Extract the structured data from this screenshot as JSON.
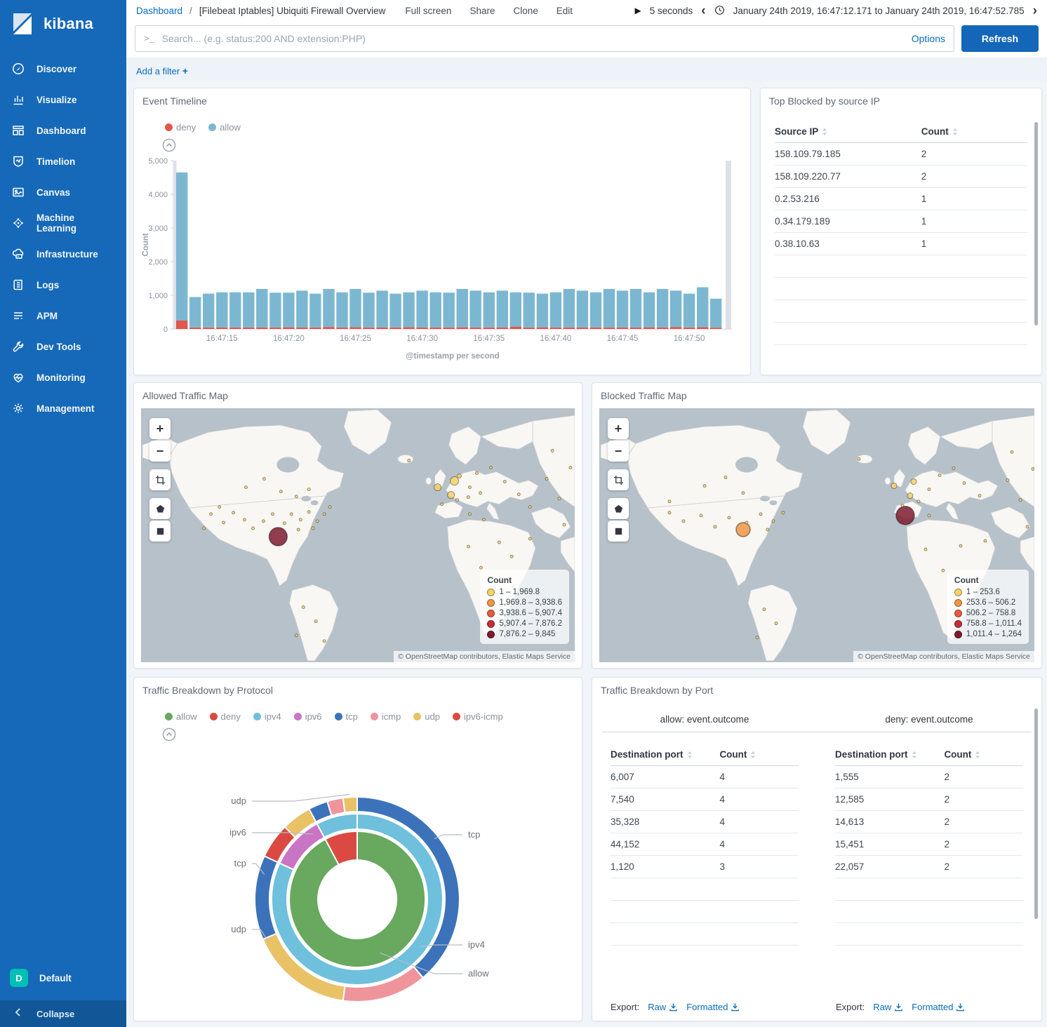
{
  "app": {
    "wordmark": "kibana"
  },
  "colors": {
    "sidebar": "#1569b8",
    "accent": "#1467b8",
    "link": "#0a6cbb",
    "space_badge": "#00bfb3"
  },
  "sidebar": {
    "items": [
      {
        "label": "Discover",
        "icon": "discover"
      },
      {
        "label": "Visualize",
        "icon": "visualize"
      },
      {
        "label": "Dashboard",
        "icon": "dashboard"
      },
      {
        "label": "Timelion",
        "icon": "timelion"
      },
      {
        "label": "Canvas",
        "icon": "canvas"
      },
      {
        "label": "Machine Learning",
        "icon": "machine-learning"
      },
      {
        "label": "Infrastructure",
        "icon": "infrastructure"
      },
      {
        "label": "Logs",
        "icon": "logs"
      },
      {
        "label": "APM",
        "icon": "apm"
      },
      {
        "label": "Dev Tools",
        "icon": "dev-tools"
      },
      {
        "label": "Monitoring",
        "icon": "monitoring"
      },
      {
        "label": "Management",
        "icon": "management"
      }
    ],
    "space": {
      "badge": "D",
      "label": "Default"
    },
    "collapse_label": "Collapse"
  },
  "topbar": {
    "breadcrumb": {
      "root": "Dashboard",
      "separator": "/",
      "current": "[Filebeat Iptables] Ubiquiti Firewall Overview"
    },
    "menu": [
      "Full screen",
      "Share",
      "Clone",
      "Edit"
    ],
    "refresh_interval": "5 seconds",
    "time_range": "January 24th 2019, 16:47:12.171 to January 24th 2019, 16:47:52.785"
  },
  "search": {
    "placeholder": "Search... (e.g. status:200 AND extension:PHP)",
    "options_label": "Options",
    "refresh_label": "Refresh"
  },
  "filter_bar": {
    "label": "Add a filter",
    "plus": "+"
  },
  "chart_data": [
    {
      "panel": "event-timeline",
      "type": "bar",
      "stacked": true,
      "title": "Event Timeline",
      "ylabel": "Count",
      "xlabel": "@timestamp per second",
      "ylim": [
        0,
        5000
      ],
      "y_ticks": [
        {
          "v": 0,
          "label": "0"
        },
        {
          "v": 1000,
          "label": "1,000"
        },
        {
          "v": 2000,
          "label": "2,000"
        },
        {
          "v": 3000,
          "label": "3,000"
        },
        {
          "v": 4000,
          "label": "4,000"
        },
        {
          "v": 5000,
          "label": "5,000"
        }
      ],
      "x": [
        "16:47:12",
        "16:47:13",
        "16:47:14",
        "16:47:15",
        "16:47:16",
        "16:47:17",
        "16:47:18",
        "16:47:19",
        "16:47:20",
        "16:47:21",
        "16:47:22",
        "16:47:23",
        "16:47:24",
        "16:47:25",
        "16:47:26",
        "16:47:27",
        "16:47:28",
        "16:47:29",
        "16:47:30",
        "16:47:31",
        "16:47:32",
        "16:47:33",
        "16:47:34",
        "16:47:35",
        "16:47:36",
        "16:47:37",
        "16:47:38",
        "16:47:39",
        "16:47:40",
        "16:47:41",
        "16:47:42",
        "16:47:43",
        "16:47:44",
        "16:47:45",
        "16:47:46",
        "16:47:47",
        "16:47:48",
        "16:47:49",
        "16:47:50",
        "16:47:51",
        "16:47:52"
      ],
      "x_tick_indices": [
        3,
        8,
        13,
        18,
        23,
        28,
        33,
        38
      ],
      "series": [
        {
          "name": "deny",
          "color": "#e2574e",
          "values": [
            250,
            45,
            45,
            45,
            45,
            45,
            45,
            45,
            50,
            45,
            45,
            60,
            45,
            55,
            45,
            45,
            45,
            55,
            45,
            45,
            45,
            50,
            45,
            45,
            45,
            70,
            45,
            50,
            45,
            45,
            45,
            45,
            45,
            45,
            45,
            50,
            45,
            60,
            45,
            55,
            40
          ]
        },
        {
          "name": "allow",
          "color": "#7cb7d2",
          "values": [
            4400,
            905,
            1005,
            1045,
            1045,
            1045,
            1145,
            1035,
            1030,
            1095,
            1005,
            1130,
            1045,
            1135,
            1035,
            1095,
            1005,
            1035,
            1095,
            1045,
            1035,
            1140,
            1095,
            1045,
            1095,
            1020,
            1035,
            1000,
            1045,
            1145,
            1095,
            1045,
            1145,
            1095,
            1145,
            1040,
            1145,
            1080,
            1005,
            1185,
            860
          ]
        }
      ]
    },
    {
      "panel": "top-blocked",
      "type": "table",
      "title": "Top Blocked by source IP",
      "columns": [
        "Source IP",
        "Count"
      ],
      "rows": [
        [
          "158.109.79.185",
          "2"
        ],
        [
          "158.109.220.77",
          "2"
        ],
        [
          "0.2.53.216",
          "1"
        ],
        [
          "0.34.179.189",
          "1"
        ],
        [
          "0.38.10.63",
          "1"
        ]
      ],
      "empty_rows": 4
    },
    {
      "panel": "allowed-map",
      "type": "map",
      "title": "Allowed Traffic Map",
      "legend_title": "Count",
      "legend": [
        {
          "label": "1 – 1,969.8",
          "color": "#f5d168"
        },
        {
          "label": "1,969.8 – 3,938.6",
          "color": "#ef9646"
        },
        {
          "label": "3,938.6 – 5,907.4",
          "color": "#e55d3e"
        },
        {
          "label": "5,907.4 – 7,876.2",
          "color": "#c32f35"
        },
        {
          "label": "7,876.2 – 9,845",
          "color": "#7f1c30"
        }
      ],
      "attribution": "© OpenStreetMap contributors, Elastic Maps Service",
      "points": [
        [
          196,
          182,
          13,
          4
        ],
        [
          424,
          112,
          5,
          0
        ],
        [
          448,
          103,
          6,
          0
        ],
        [
          443,
          123,
          5,
          0
        ],
        [
          100,
          150,
          2,
          0
        ],
        [
          118,
          162,
          2,
          0
        ],
        [
          132,
          148,
          2,
          0
        ],
        [
          148,
          158,
          2,
          0
        ],
        [
          160,
          170,
          2,
          0
        ],
        [
          175,
          160,
          2,
          0
        ],
        [
          188,
          150,
          2,
          0
        ],
        [
          205,
          163,
          2,
          0
        ],
        [
          215,
          150,
          2,
          0
        ],
        [
          228,
          158,
          2,
          0
        ],
        [
          240,
          147,
          2,
          0
        ],
        [
          252,
          160,
          2,
          0
        ],
        [
          262,
          150,
          2,
          0
        ],
        [
          270,
          140,
          2,
          0
        ],
        [
          246,
          170,
          2,
          0
        ],
        [
          225,
          172,
          2,
          0
        ],
        [
          112,
          140,
          2,
          0
        ],
        [
          90,
          170,
          2,
          0
        ],
        [
          150,
          112,
          2,
          0
        ],
        [
          176,
          100,
          2,
          0
        ],
        [
          200,
          118,
          2,
          0
        ],
        [
          222,
          125,
          2,
          0
        ],
        [
          240,
          115,
          2,
          0
        ],
        [
          455,
          96,
          3,
          0
        ],
        [
          470,
          112,
          2,
          0
        ],
        [
          480,
          92,
          2,
          0
        ],
        [
          500,
          84,
          2,
          0
        ],
        [
          430,
          136,
          2,
          0
        ],
        [
          452,
          130,
          2,
          0
        ],
        [
          468,
          126,
          2,
          0
        ],
        [
          485,
          120,
          2,
          0
        ],
        [
          520,
          104,
          2,
          0
        ],
        [
          540,
          122,
          2,
          0
        ],
        [
          556,
          140,
          2,
          0
        ],
        [
          470,
          150,
          2,
          0
        ],
        [
          490,
          158,
          2,
          0
        ],
        [
          468,
          196,
          2,
          0
        ],
        [
          486,
          226,
          2,
          0
        ],
        [
          512,
          190,
          2,
          0
        ],
        [
          530,
          210,
          2,
          0
        ],
        [
          556,
          185,
          2,
          0
        ],
        [
          580,
          100,
          2,
          0
        ],
        [
          598,
          128,
          2,
          0
        ],
        [
          614,
          84,
          2,
          0
        ],
        [
          605,
          165,
          2,
          0
        ],
        [
          588,
          60,
          2,
          0
        ],
        [
          232,
          282,
          2,
          0
        ],
        [
          250,
          302,
          2,
          0
        ],
        [
          222,
          322,
          2,
          0
        ],
        [
          262,
          330,
          2,
          0
        ],
        [
          383,
          74,
          2,
          0
        ]
      ]
    },
    {
      "panel": "blocked-map",
      "type": "map",
      "title": "Blocked Traffic Map",
      "legend_title": "Count",
      "legend": [
        {
          "label": "1 – 253.6",
          "color": "#f5d168"
        },
        {
          "label": "253.6 – 506.2",
          "color": "#ef9646"
        },
        {
          "label": "506.2 – 758.8",
          "color": "#e55d3e"
        },
        {
          "label": "758.8 – 1,011.4",
          "color": "#c32f35"
        },
        {
          "label": "1,011.4 – 1,264",
          "color": "#7f1c30"
        }
      ],
      "attribution": "© OpenStreetMap contributors, Elastic Maps Service",
      "points": [
        [
          205,
          172,
          10,
          1
        ],
        [
          436,
          152,
          13,
          4
        ],
        [
          100,
          148,
          2,
          0
        ],
        [
          120,
          160,
          2,
          0
        ],
        [
          145,
          152,
          2,
          0
        ],
        [
          165,
          168,
          2,
          0
        ],
        [
          185,
          155,
          2,
          0
        ],
        [
          210,
          162,
          2,
          0
        ],
        [
          230,
          150,
          2,
          0
        ],
        [
          248,
          160,
          2,
          0
        ],
        [
          262,
          148,
          2,
          0
        ],
        [
          240,
          172,
          2,
          0
        ],
        [
          150,
          110,
          2,
          0
        ],
        [
          180,
          98,
          2,
          0
        ],
        [
          205,
          120,
          2,
          0
        ],
        [
          100,
          132,
          2,
          0
        ],
        [
          420,
          110,
          4,
          0
        ],
        [
          448,
          104,
          4,
          0
        ],
        [
          443,
          124,
          4,
          0
        ],
        [
          470,
          115,
          2,
          0
        ],
        [
          485,
          95,
          2,
          0
        ],
        [
          505,
          85,
          2,
          0
        ],
        [
          432,
          138,
          2,
          0
        ],
        [
          455,
          132,
          2,
          0
        ],
        [
          520,
          106,
          2,
          0
        ],
        [
          542,
          124,
          2,
          0
        ],
        [
          470,
          152,
          2,
          0
        ],
        [
          465,
          200,
          2,
          0
        ],
        [
          490,
          230,
          2,
          0
        ],
        [
          515,
          195,
          2,
          0
        ],
        [
          550,
          188,
          2,
          0
        ],
        [
          582,
          102,
          2,
          0
        ],
        [
          600,
          130,
          2,
          0
        ],
        [
          618,
          86,
          2,
          0
        ],
        [
          610,
          168,
          2,
          0
        ],
        [
          588,
          62,
          2,
          0
        ],
        [
          235,
          285,
          2,
          0
        ],
        [
          252,
          305,
          2,
          0
        ],
        [
          225,
          325,
          2,
          0
        ],
        [
          370,
          72,
          2,
          0
        ]
      ]
    },
    {
      "panel": "protocol",
      "type": "pie",
      "title": "Traffic Breakdown by Protocol",
      "legend": [
        {
          "label": "allow",
          "color": "#69a85f"
        },
        {
          "label": "deny",
          "color": "#da4a42"
        },
        {
          "label": "ipv4",
          "color": "#6ec0dd"
        },
        {
          "label": "ipv6",
          "color": "#c974c4"
        },
        {
          "label": "tcp",
          "color": "#3c72b9"
        },
        {
          "label": "icmp",
          "color": "#f0949b"
        },
        {
          "label": "udp",
          "color": "#e9c266"
        },
        {
          "label": "ipv6-icmp",
          "color": "#da4a42"
        }
      ],
      "rings": [
        {
          "field": "event.outcome",
          "segments": [
            {
              "label": "allow",
              "from": 0,
              "to": 332,
              "color": "#69a85f"
            },
            {
              "label": "deny",
              "from": 332,
              "to": 360,
              "color": "#da4a42"
            }
          ]
        },
        {
          "field": "network.type",
          "segments": [
            {
              "label": "ipv4",
              "from": 0,
              "to": 295,
              "color": "#6ec0dd"
            },
            {
              "label": "ipv6",
              "from": 295,
              "to": 332,
              "color": "#c974c4"
            },
            {
              "label": "ipv4",
              "from": 332,
              "to": 360,
              "color": "#6ec0dd"
            }
          ]
        },
        {
          "field": "network.transport",
          "segments": [
            {
              "label": "tcp",
              "from": 0,
              "to": 140,
              "color": "#3c72b9"
            },
            {
              "label": "icmp",
              "from": 140,
              "to": 188,
              "color": "#f0949b"
            },
            {
              "label": "udp",
              "from": 188,
              "to": 247,
              "color": "#e9c266"
            },
            {
              "label": "tcp",
              "from": 247,
              "to": 295,
              "color": "#3c72b9"
            },
            {
              "label": "ipv6-icmp",
              "from": 295,
              "to": 315,
              "color": "#da4a42"
            },
            {
              "label": "udp",
              "from": 315,
              "to": 332,
              "color": "#e9c266"
            },
            {
              "label": "tcp",
              "from": 332,
              "to": 343,
              "color": "#3c72b9"
            },
            {
              "label": "icmp",
              "from": 343,
              "to": 352,
              "color": "#f0949b"
            },
            {
              "label": "udp",
              "from": 352,
              "to": 360,
              "color": "#e9c266"
            }
          ]
        }
      ],
      "callouts": [
        {
          "text": "udp",
          "side": "left",
          "angle": 356,
          "r": 150,
          "y": 85
        },
        {
          "text": "ipv6",
          "side": "left",
          "angle": 326,
          "r": 112,
          "y": 130
        },
        {
          "text": "tcp",
          "side": "left",
          "angle": 285,
          "r": 137,
          "y": 174
        },
        {
          "text": "udp",
          "side": "left",
          "angle": 244,
          "r": 140,
          "y": 268
        },
        {
          "text": "tcp",
          "side": "right",
          "angle": 52,
          "r": 140,
          "y": 133
        },
        {
          "text": "ipv4",
          "side": "right",
          "angle": 127,
          "r": 112,
          "y": 290
        },
        {
          "text": "allow",
          "side": "right",
          "angle": 157,
          "r": 83,
          "y": 331
        }
      ]
    },
    {
      "panel": "port",
      "type": "table",
      "title": "Traffic Breakdown by Port",
      "groups": [
        {
          "header": "allow: event.outcome",
          "columns": [
            "Destination port",
            "Count"
          ],
          "rows": [
            [
              "6,007",
              "4"
            ],
            [
              "7,540",
              "4"
            ],
            [
              "35,328",
              "4"
            ],
            [
              "44,152",
              "4"
            ],
            [
              "1,120",
              "3"
            ]
          ]
        },
        {
          "header": "deny: event.outcome",
          "columns": [
            "Destination port",
            "Count"
          ],
          "rows": [
            [
              "1,555",
              "2"
            ],
            [
              "12,585",
              "2"
            ],
            [
              "14,613",
              "2"
            ],
            [
              "15,451",
              "2"
            ],
            [
              "22,057",
              "2"
            ]
          ]
        }
      ],
      "empty_rows": 3,
      "export": {
        "label": "Export:",
        "raw": "Raw",
        "formatted": "Formatted"
      }
    }
  ]
}
